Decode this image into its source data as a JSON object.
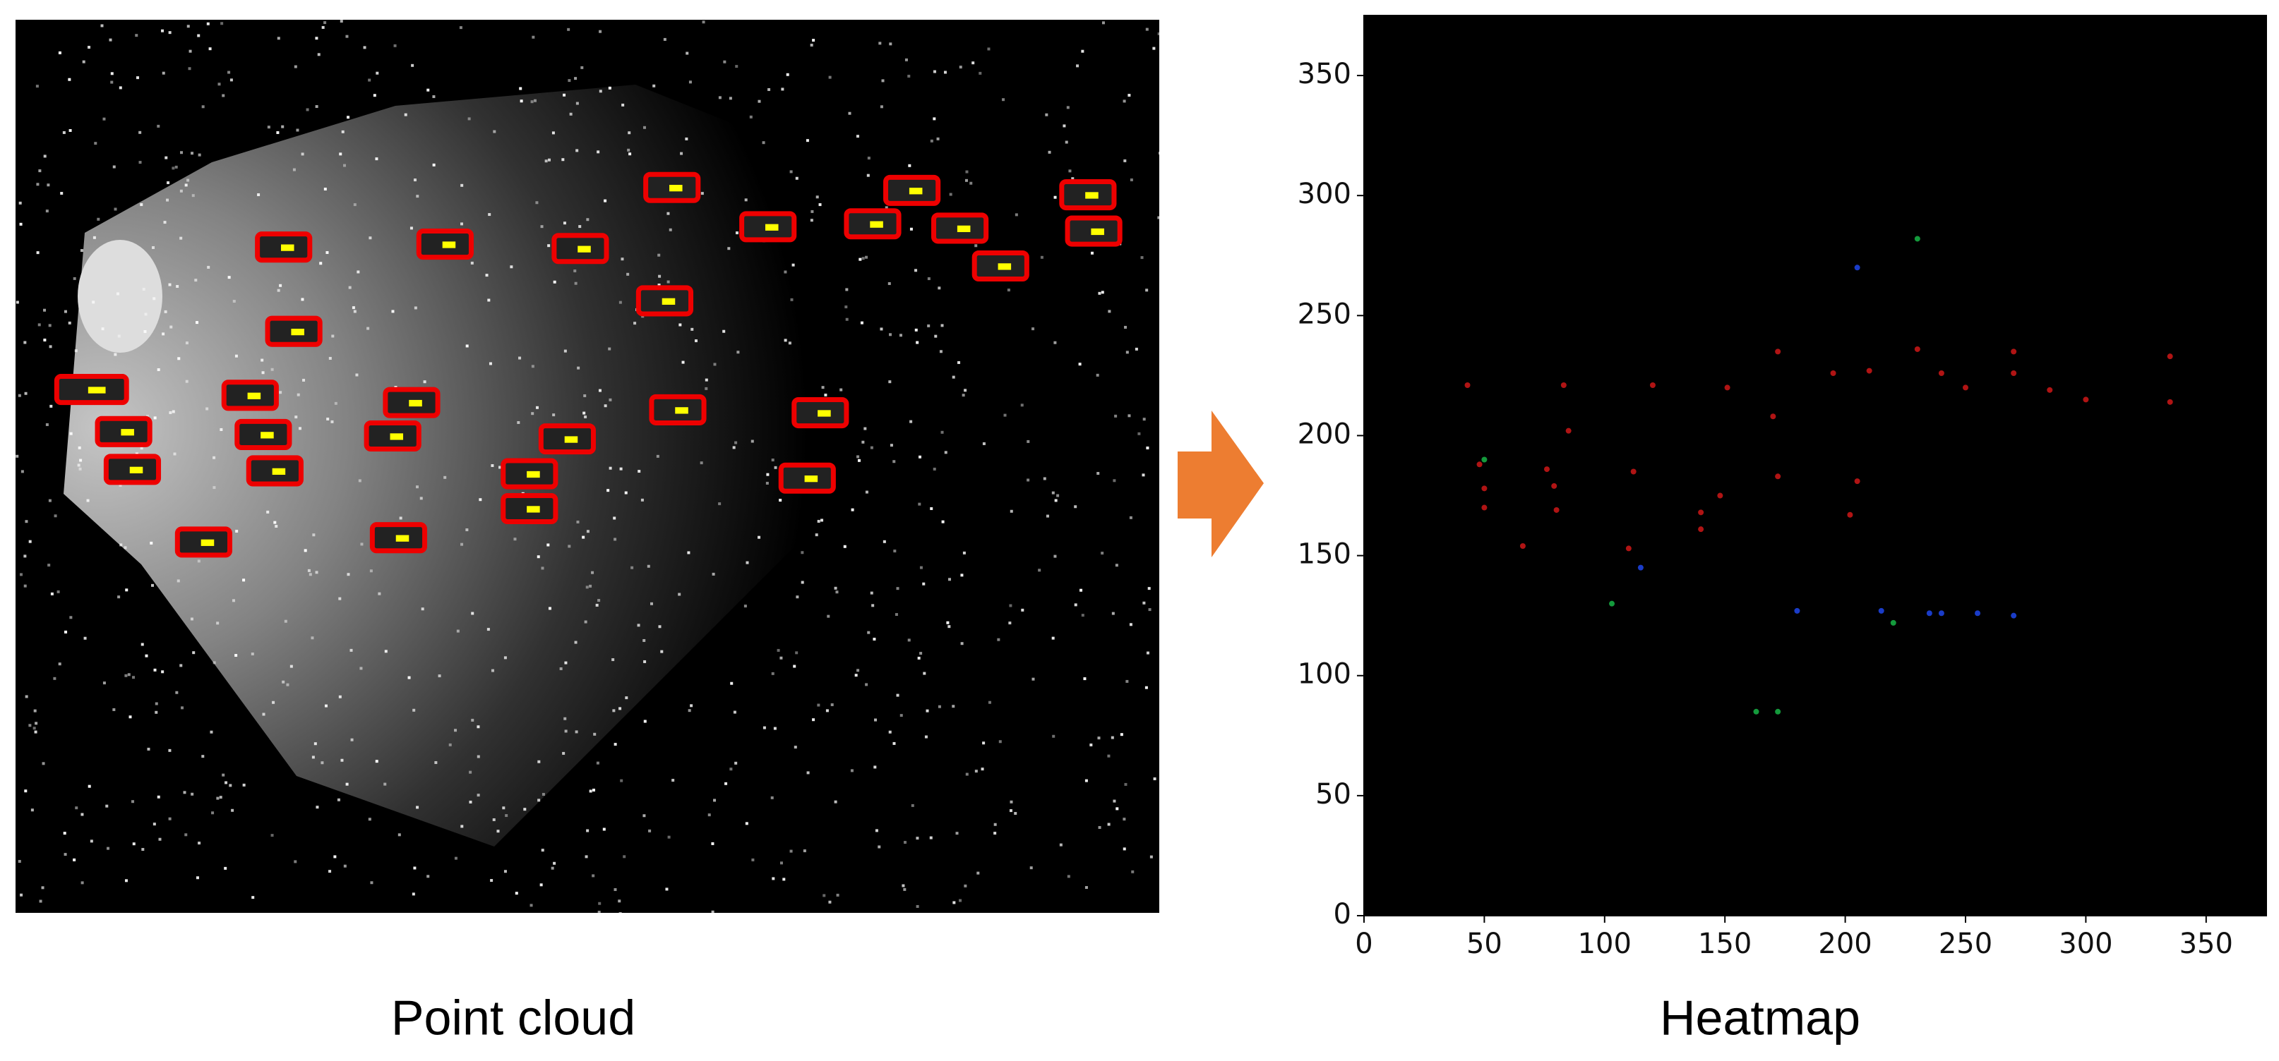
{
  "captions": [
    "Point cloud",
    "Heatmap"
  ],
  "chart_data": {
    "type": "scatter",
    "xlim": [
      0,
      375
    ],
    "ylim": [
      0,
      375
    ],
    "xticks": [
      0,
      50,
      100,
      150,
      200,
      250,
      300,
      350
    ],
    "yticks": [
      0,
      50,
      100,
      150,
      200,
      250,
      300,
      350
    ],
    "background": "#000000",
    "series": [
      {
        "color": "#b01414",
        "x": [
          43,
          48,
          50,
          50,
          66,
          76,
          79,
          83,
          85,
          80,
          112,
          110,
          120,
          140,
          140,
          148,
          151,
          170,
          172,
          172,
          195,
          202,
          205,
          210,
          230,
          240,
          250,
          270,
          270,
          285,
          300,
          335,
          335
        ],
        "y": [
          221,
          188,
          178,
          170,
          154,
          186,
          179,
          221,
          202,
          169,
          185,
          153,
          221,
          168,
          161,
          175,
          220,
          208,
          235,
          183,
          226,
          167,
          181,
          227,
          236,
          226,
          220,
          235,
          226,
          219,
          215,
          233,
          214
        ]
      },
      {
        "color": "#149a3c",
        "x": [
          50,
          103,
          220,
          163,
          172,
          230
        ],
        "y": [
          190,
          130,
          122,
          85,
          85,
          282
        ]
      },
      {
        "color": "#1a3cc8",
        "x": [
          115,
          205,
          215,
          235,
          240,
          255,
          270,
          180
        ],
        "y": [
          145,
          270,
          127,
          126,
          126,
          126,
          125,
          127
        ]
      }
    ]
  }
}
